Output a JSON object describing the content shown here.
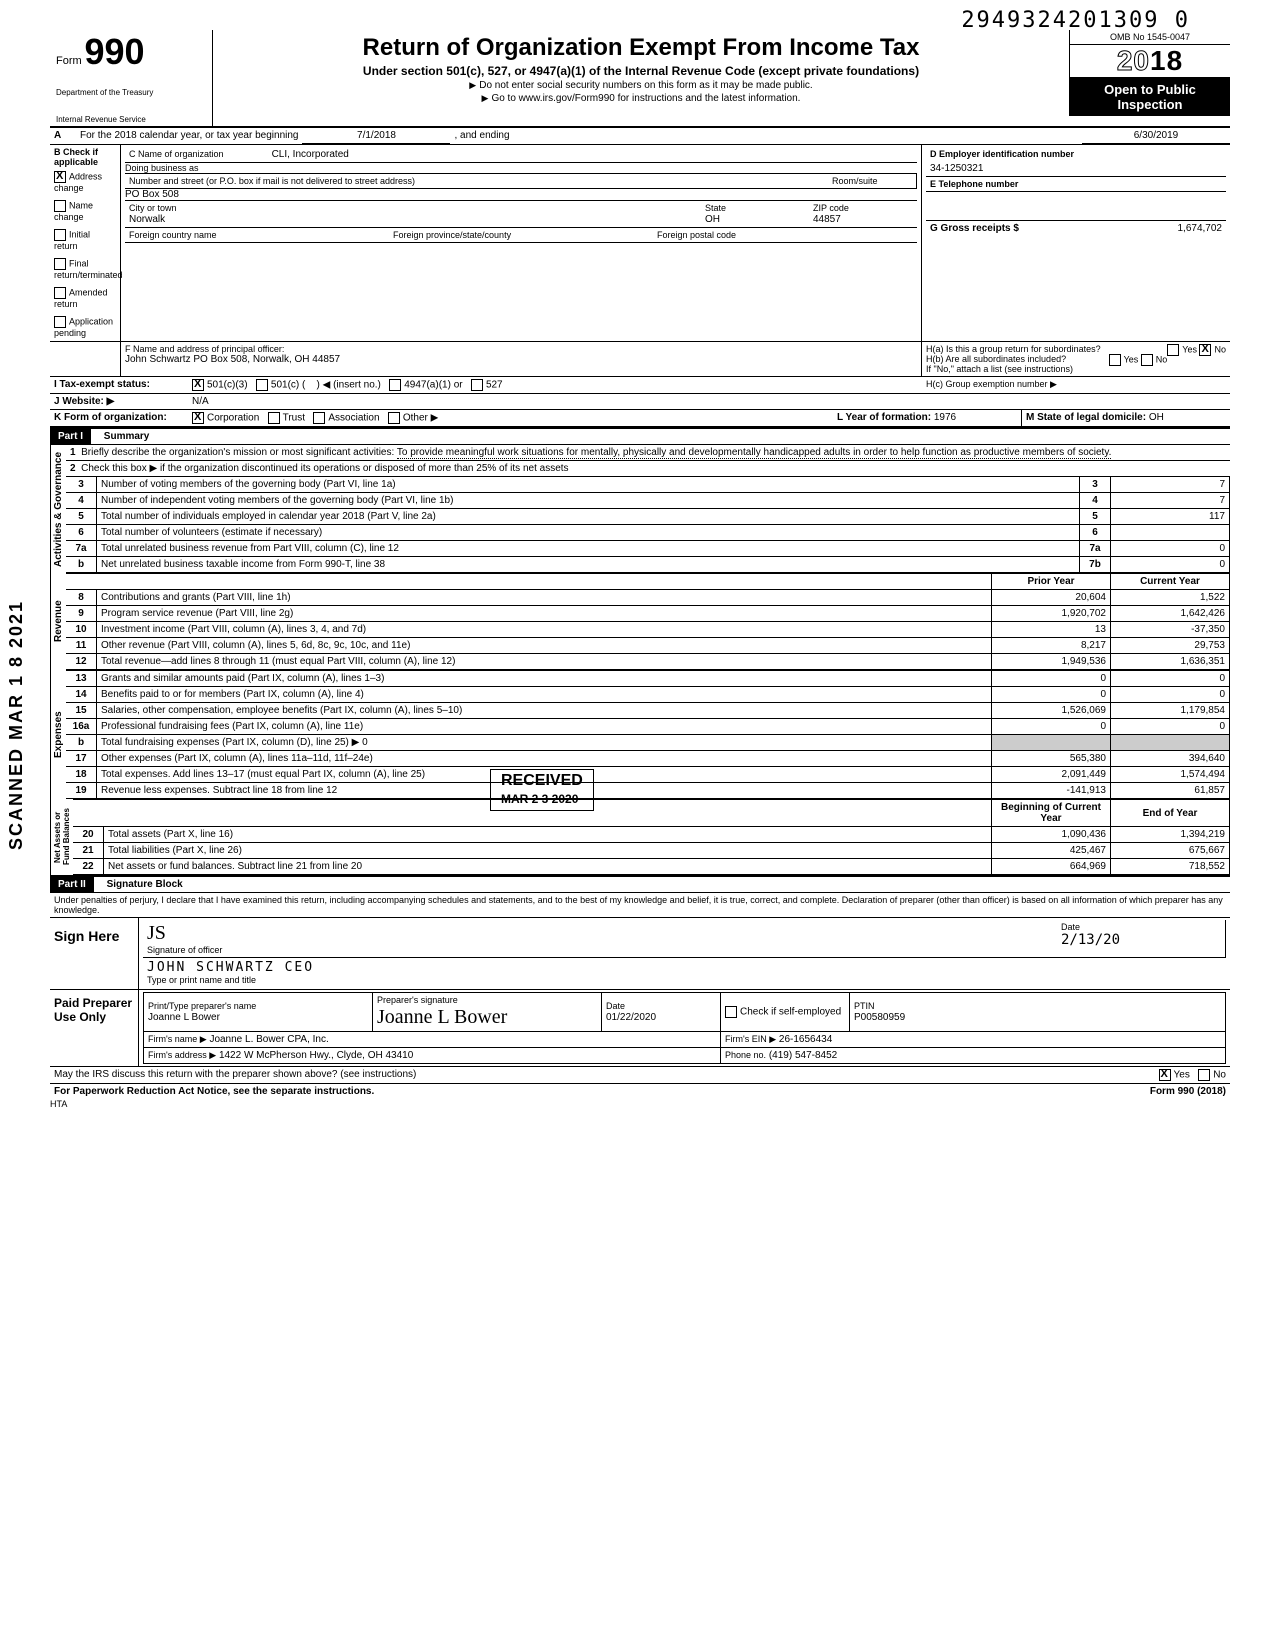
{
  "dln": "2949324201309  0",
  "omb": "OMB No 1545-0047",
  "form_label": "Form",
  "form_number": "990",
  "dept_treasury": "Department of the Treasury",
  "irs": "Internal Revenue Service",
  "title": "Return of Organization Exempt From Income Tax",
  "subtitle": "Under section 501(c), 527, or 4947(a)(1) of the Internal Revenue Code (except private foundations)",
  "warn_ssn": "Do not enter social security numbers on this form as it may be made public.",
  "goto": "Go to www.irs.gov/Form990 for instructions and the latest information.",
  "year": "2018",
  "open_public1": "Open to Public",
  "open_public2": "Inspection",
  "lineA": "For the 2018 calendar year, or tax year beginning",
  "period_start": "7/1/2018",
  "and_ending": ", and ending",
  "period_end": "6/30/2019",
  "B_label": "B  Check if applicable",
  "B_items": [
    "Address change",
    "Name change",
    "Initial return",
    "Final return/terminated",
    "Amended return",
    "Application pending"
  ],
  "C_name_label": "C  Name of organization",
  "C_name": "CLI, Incorporated",
  "dba_label": "Doing business as",
  "addr_label": "Number and street (or P.O. box if mail is not delivered to street address)",
  "room_label": "Room/suite",
  "addr": "PO Box 508",
  "city_label": "City or town",
  "city": "Norwalk",
  "state_label": "State",
  "state": "OH",
  "zip_label": "ZIP code",
  "zip": "44857",
  "foreign_country": "Foreign country name",
  "foreign_prov": "Foreign province/state/county",
  "foreign_postal": "Foreign postal code",
  "D_label": "D  Employer identification number",
  "ein": "34-1250321",
  "E_label": "E  Telephone number",
  "G_label": "G  Gross receipts $",
  "gross_receipts": "1,674,702",
  "F_label": "F  Name and address of principal officer:",
  "officer": "John Schwartz PO Box 508, Norwalk, OH  44857",
  "Ha": "H(a) Is this a group return for subordinates?",
  "Hb": "H(b) Are all subordinates included?",
  "H_note": "If \"No,\" attach a list (see instructions)",
  "Hc": "H(c) Group exemption number ▶",
  "yes": "Yes",
  "no": "No",
  "I_label": "I  Tax-exempt status:",
  "I_501c3": "501(c)(3)",
  "I_501c": "501(c)",
  "I_insert": "(insert no.)",
  "I_4947": "4947(a)(1) or",
  "I_527": "527",
  "J_label": "J  Website: ▶",
  "website": "N/A",
  "K_label": "K Form of organization:",
  "K_corp": "Corporation",
  "K_trust": "Trust",
  "K_assoc": "Association",
  "K_other": "Other ▶",
  "L_label": "L Year of formation:",
  "L_year": "1976",
  "M_label": "M State of legal domicile:",
  "M_state": "OH",
  "partI": "Part I",
  "partI_title": "Summary",
  "line1_label": "Briefly describe the organization's mission or most significant activities:",
  "mission": "To provide meaningful work situations for mentally, physically and developmentally handicapped adults in order to help function as productive members of society.",
  "line2": "Check this box ▶       if the organization discontinued its operations or disposed of more than 25% of its net assets",
  "gov_rows": [
    {
      "n": "3",
      "t": "Number of voting members of the governing body (Part VI, line 1a)",
      "r": "3",
      "v": "7"
    },
    {
      "n": "4",
      "t": "Number of independent voting members of the governing body (Part VI, line 1b)",
      "r": "4",
      "v": "7"
    },
    {
      "n": "5",
      "t": "Total number of individuals employed in calendar year 2018 (Part V, line 2a)",
      "r": "5",
      "v": "117"
    },
    {
      "n": "6",
      "t": "Total number of volunteers (estimate if necessary)",
      "r": "6",
      "v": ""
    },
    {
      "n": "7a",
      "t": "Total unrelated business revenue from Part VIII, column (C), line 12",
      "r": "7a",
      "v": "0"
    },
    {
      "n": "b",
      "t": "Net unrelated business taxable income from Form 990-T, line 38",
      "r": "7b",
      "v": "0"
    }
  ],
  "prior_year": "Prior Year",
  "current_year": "Current Year",
  "rev_label": "Revenue",
  "rev_rows": [
    {
      "n": "8",
      "t": "Contributions and grants (Part VIII, line 1h)",
      "py": "20,604",
      "cy": "1,522"
    },
    {
      "n": "9",
      "t": "Program service revenue (Part VIII, line 2g)",
      "py": "1,920,702",
      "cy": "1,642,426"
    },
    {
      "n": "10",
      "t": "Investment income (Part VIII, column (A), lines 3, 4, and 7d)",
      "py": "13",
      "cy": "-37,350"
    },
    {
      "n": "11",
      "t": "Other revenue (Part VIII, column (A), lines 5, 6d, 8c, 9c, 10c, and 11e)",
      "py": "8,217",
      "cy": "29,753"
    },
    {
      "n": "12",
      "t": "Total revenue—add lines 8 through 11 (must equal Part VIII, column (A), line 12)",
      "py": "1,949,536",
      "cy": "1,636,351"
    }
  ],
  "exp_label": "Expenses",
  "exp_rows": [
    {
      "n": "13",
      "t": "Grants and similar amounts paid (Part IX, column (A), lines 1–3)",
      "py": "0",
      "cy": "0"
    },
    {
      "n": "14",
      "t": "Benefits paid to or for members (Part IX, column (A), line 4)",
      "py": "0",
      "cy": "0"
    },
    {
      "n": "15",
      "t": "Salaries, other compensation, employee benefits (Part IX, column (A), lines 5–10)",
      "py": "1,526,069",
      "cy": "1,179,854"
    },
    {
      "n": "16a",
      "t": "Professional fundraising fees (Part IX, column (A), line 11e)",
      "py": "0",
      "cy": "0"
    },
    {
      "n": "b",
      "t": "Total fundraising expenses (Part IX, column (D), line 25) ▶                                  0",
      "py": "shade",
      "cy": "shade"
    },
    {
      "n": "17",
      "t": "Other expenses (Part IX, column (A), lines 11a–11d, 11f–24e)",
      "py": "565,380",
      "cy": "394,640"
    },
    {
      "n": "18",
      "t": "Total expenses. Add lines 13–17 (must equal Part IX, column (A), line 25)",
      "py": "2,091,449",
      "cy": "1,574,494"
    },
    {
      "n": "19",
      "t": "Revenue less expenses. Subtract line 18 from line 12",
      "py": "-141,913",
      "cy": "61,857"
    }
  ],
  "na_label": "Net Assets or\nFund Balances",
  "boy": "Beginning of Current Year",
  "eoy": "End of Year",
  "na_rows": [
    {
      "n": "20",
      "t": "Total assets (Part X, line 16)",
      "py": "1,090,436",
      "cy": "1,394,219"
    },
    {
      "n": "21",
      "t": "Total liabilities (Part X, line 26)",
      "py": "425,467",
      "cy": "675,667"
    },
    {
      "n": "22",
      "t": "Net assets or fund balances. Subtract line 21 from line 20",
      "py": "664,969",
      "cy": "718,552"
    }
  ],
  "partII": "Part II",
  "partII_title": "Signature Block",
  "perjury": "Under penalties of perjury, I declare that I have examined this return, including accompanying schedules and statements, and to the best of my knowledge and belief, it is true, correct, and complete. Declaration of preparer (other than officer) is based on all information of which preparer has any knowledge.",
  "sign_here": "Sign Here",
  "sig_officer_label": "Signature of officer",
  "date_label": "Date",
  "officer_name": "JOHN   SCHWARTZ       CEO",
  "sig_date": "2/13/20",
  "type_name_label": "Type or print name and title",
  "paid_preparer": "Paid Preparer Use Only",
  "prep_name_label": "Print/Type preparer's name",
  "prep_sig_label": "Preparer's signature",
  "prep_name": "Joanne L Bower",
  "prep_date": "01/22/2020",
  "check_if": "Check        if self-employed",
  "ptin_label": "PTIN",
  "ptin": "P00580959",
  "firm_name_label": "Firm's name  ▶",
  "firm_name": "Joanne L. Bower CPA, Inc.",
  "firm_ein_label": "Firm's EIN ▶",
  "firm_ein": "26-1656434",
  "firm_addr_label": "Firm's address ▶",
  "firm_addr": "1422 W McPherson Hwy., Clyde, OH 43410",
  "phone_label": "Phone no.",
  "phone": "(419) 547-8452",
  "discuss": "May the IRS discuss this return with the preparer shown above? (see instructions)",
  "pra": "For Paperwork Reduction Act Notice, see the separate instructions.",
  "hta": "HTA",
  "form_foot": "Form 990 (2018)",
  "scanned": "SCANNED MAR 1 8 2021",
  "received": "RECEIVED",
  "received_date": "MAR 2 3 2020"
}
